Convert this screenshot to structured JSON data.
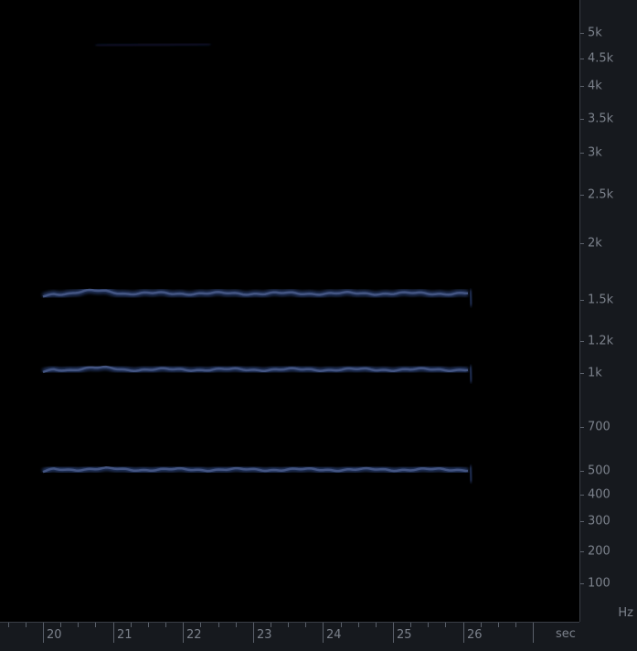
{
  "frequency_axis": {
    "unit": "Hz",
    "ticks": [
      "5k",
      "4.5k",
      "4k",
      "3.5k",
      "3k",
      "2.5k",
      "2k",
      "1.5k",
      "1.2k",
      "1k",
      "700",
      "500",
      "400",
      "300",
      "200",
      "100"
    ],
    "tick_values": [
      5000,
      4500,
      4000,
      3500,
      3000,
      2500,
      2000,
      1500,
      1200,
      1000,
      700,
      500,
      400,
      300,
      200,
      100
    ]
  },
  "time_axis": {
    "unit": "sec",
    "ticks": [
      "20",
      "21",
      "22",
      "23",
      "24",
      "25",
      "26"
    ],
    "tick_values": [
      20,
      21,
      22,
      23,
      24,
      25,
      26
    ]
  },
  "spectrogram": {
    "harmonics": [
      {
        "freq_hz": 505,
        "start_sec": 20.0,
        "end_sec": 26.1
      },
      {
        "freq_hz": 1020,
        "start_sec": 20.0,
        "end_sec": 26.1
      },
      {
        "freq_hz": 1550,
        "start_sec": 20.0,
        "end_sec": 26.1
      }
    ],
    "colors": {
      "background": "#000000",
      "harmonic": "#2b3f72",
      "harmonic_core": "#4a5c8a",
      "panel": "#16191e",
      "label": "#7c828c"
    }
  }
}
